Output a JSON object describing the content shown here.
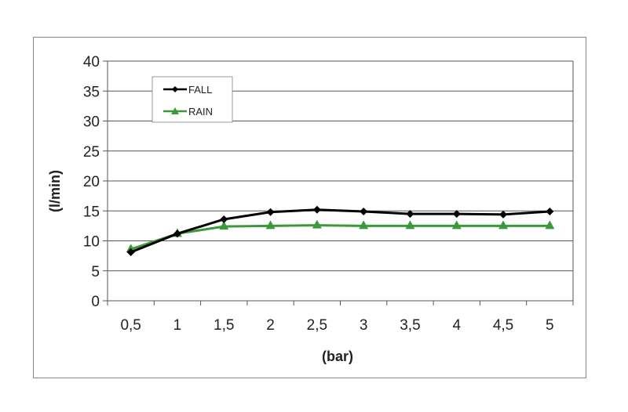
{
  "chart_data": {
    "type": "line",
    "categories": [
      "0,5",
      "1",
      "1,5",
      "2",
      "2,5",
      "3",
      "3,5",
      "4",
      "4,5",
      "5"
    ],
    "series": [
      {
        "name": "FALL",
        "color": "#000000",
        "marker": "diamond",
        "values": [
          8.1,
          11.2,
          13.6,
          14.8,
          15.2,
          14.9,
          14.5,
          14.5,
          14.4,
          14.9
        ]
      },
      {
        "name": "RAIN",
        "color": "#3a9a3a",
        "marker": "triangle",
        "values": [
          8.6,
          11.2,
          12.4,
          12.5,
          12.6,
          12.5,
          12.5,
          12.5,
          12.5,
          12.5
        ]
      }
    ],
    "xlabel": "(bar)",
    "ylabel": "(l/min)",
    "ylim": [
      0,
      40
    ],
    "yticks": [
      "0",
      "5",
      "10",
      "15",
      "20",
      "25",
      "30",
      "35",
      "40"
    ],
    "grid": "horizontal",
    "legend": "top-left"
  }
}
